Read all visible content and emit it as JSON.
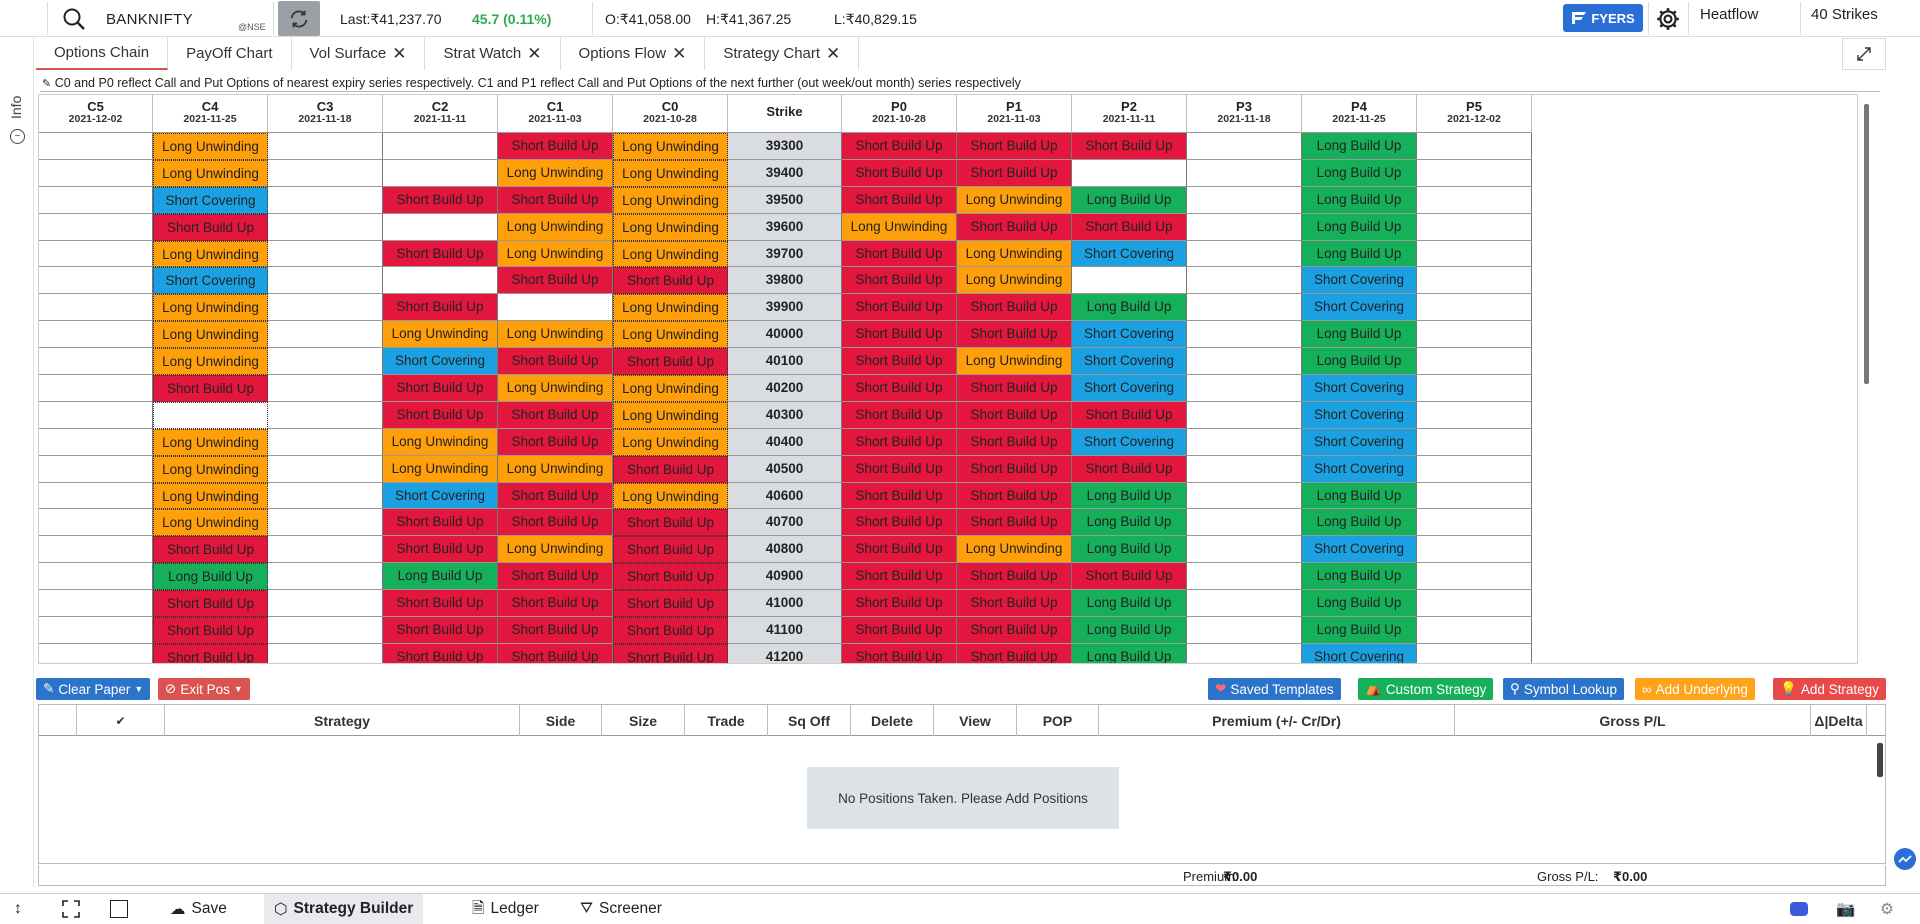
{
  "topbar": {
    "symbol": "BANKNIFTY",
    "exchange": "@NSE",
    "last": "Last:₹41,237.70",
    "change": "45.7 (0.11%)",
    "open": "O:₹41,058.00",
    "high": "H:₹41,367.25",
    "low": "L:₹40,829.15",
    "broker": "FYERS",
    "heatflow": "Heatflow",
    "strikes": "40 Strikes"
  },
  "info_label": "Info",
  "tabs": [
    {
      "label": "Options Chain",
      "closable": false,
      "active": true
    },
    {
      "label": "PayOff Chart",
      "closable": false,
      "active": false
    },
    {
      "label": "Vol Surface",
      "closable": true,
      "active": false
    },
    {
      "label": "Strat Watch",
      "closable": true,
      "active": false
    },
    {
      "label": "Options Flow",
      "closable": true,
      "active": false
    },
    {
      "label": "Strategy Chart",
      "closable": true,
      "active": false
    }
  ],
  "note": "C0 and P0 reflect Call and Put Options of nearest expiry series respectively. C1 and P1 reflect Call and Put Options of the next further (out week/out month) series respectively",
  "legend_labels": {
    "LU": "Long Unwinding",
    "SB": "Short Build Up",
    "SC": "Short Covering",
    "LB": "Long Build Up"
  },
  "columns": [
    {
      "name": "C5",
      "date": "2021-12-02"
    },
    {
      "name": "C4",
      "date": "2021-11-25"
    },
    {
      "name": "C3",
      "date": "2021-11-18"
    },
    {
      "name": "C2",
      "date": "2021-11-11"
    },
    {
      "name": "C1",
      "date": "2021-11-03"
    },
    {
      "name": "C0",
      "date": "2021-10-28"
    },
    {
      "name": "Strike",
      "date": ""
    },
    {
      "name": "P0",
      "date": "2021-10-28"
    },
    {
      "name": "P1",
      "date": "2021-11-03"
    },
    {
      "name": "P2",
      "date": "2021-11-11"
    },
    {
      "name": "P3",
      "date": "2021-11-18"
    },
    {
      "name": "P4",
      "date": "2021-11-25"
    },
    {
      "name": "P5",
      "date": "2021-12-02"
    }
  ],
  "rows": [
    {
      "strike": "39300",
      "cells": [
        "E",
        "LU",
        "E",
        "E",
        "SB",
        "LU",
        "K",
        "SB",
        "SB",
        "SB",
        "E",
        "LB",
        "E"
      ]
    },
    {
      "strike": "39400",
      "cells": [
        "E",
        "LU",
        "E",
        "E",
        "LU",
        "LU",
        "K",
        "SB",
        "SB",
        "E",
        "E",
        "LB",
        "E"
      ]
    },
    {
      "strike": "39500",
      "cells": [
        "E",
        "SC",
        "E",
        "SB",
        "SB",
        "LU",
        "K",
        "SB",
        "LU",
        "LB",
        "E",
        "LB",
        "E"
      ]
    },
    {
      "strike": "39600",
      "cells": [
        "E",
        "SB",
        "E",
        "E",
        "LU",
        "LU",
        "K",
        "LU",
        "SB",
        "SB",
        "E",
        "LB",
        "E"
      ]
    },
    {
      "strike": "39700",
      "cells": [
        "E",
        "LU",
        "E",
        "SB",
        "LU",
        "LU",
        "K",
        "SB",
        "LU",
        "SC",
        "E",
        "LB",
        "E"
      ]
    },
    {
      "strike": "39800",
      "cells": [
        "E",
        "SC",
        "E",
        "E",
        "SB",
        "SB",
        "K",
        "SB",
        "LU",
        "E",
        "E",
        "SC",
        "E"
      ]
    },
    {
      "strike": "39900",
      "cells": [
        "E",
        "LU",
        "E",
        "SB",
        "E",
        "LU",
        "K",
        "SB",
        "SB",
        "LB",
        "E",
        "SC",
        "E"
      ]
    },
    {
      "strike": "40000",
      "cells": [
        "E",
        "LU",
        "E",
        "LU",
        "LU",
        "LU",
        "K",
        "SB",
        "SB",
        "SC",
        "E",
        "LB",
        "E"
      ]
    },
    {
      "strike": "40100",
      "cells": [
        "E",
        "LU",
        "E",
        "SC",
        "SB",
        "SB",
        "K",
        "SB",
        "LU",
        "SC",
        "E",
        "LB",
        "E"
      ]
    },
    {
      "strike": "40200",
      "cells": [
        "E",
        "SB",
        "E",
        "SB",
        "LU",
        "LU",
        "K",
        "SB",
        "SB",
        "SC",
        "E",
        "SC",
        "E"
      ]
    },
    {
      "strike": "40300",
      "cells": [
        "E",
        "E",
        "E",
        "SB",
        "SB",
        "LU",
        "K",
        "SB",
        "SB",
        "SB",
        "E",
        "SC",
        "E"
      ]
    },
    {
      "strike": "40400",
      "cells": [
        "E",
        "LU",
        "E",
        "LU",
        "SB",
        "LU",
        "K",
        "SB",
        "SB",
        "SC",
        "E",
        "SC",
        "E"
      ]
    },
    {
      "strike": "40500",
      "cells": [
        "E",
        "LU",
        "E",
        "LU",
        "LU",
        "SB",
        "K",
        "SB",
        "SB",
        "SB",
        "E",
        "SC",
        "E"
      ]
    },
    {
      "strike": "40600",
      "cells": [
        "E",
        "LU",
        "E",
        "SC",
        "SB",
        "LU",
        "K",
        "SB",
        "SB",
        "LB",
        "E",
        "LB",
        "E"
      ]
    },
    {
      "strike": "40700",
      "cells": [
        "E",
        "LU",
        "E",
        "SB",
        "SB",
        "SB",
        "K",
        "SB",
        "SB",
        "LB",
        "E",
        "LB",
        "E"
      ]
    },
    {
      "strike": "40800",
      "cells": [
        "E",
        "SB",
        "E",
        "SB",
        "LU",
        "SB",
        "K",
        "SB",
        "LU",
        "LB",
        "E",
        "SC",
        "E"
      ]
    },
    {
      "strike": "40900",
      "cells": [
        "E",
        "LB",
        "E",
        "LB",
        "SB",
        "SB",
        "K",
        "SB",
        "SB",
        "SB",
        "E",
        "LB",
        "E"
      ]
    },
    {
      "strike": "41000",
      "cells": [
        "E",
        "SB",
        "E",
        "SB",
        "SB",
        "SB",
        "K",
        "SB",
        "SB",
        "LB",
        "E",
        "LB",
        "E"
      ]
    },
    {
      "strike": "41100",
      "cells": [
        "E",
        "SB",
        "E",
        "SB",
        "SB",
        "SB",
        "K",
        "SB",
        "SB",
        "LB",
        "E",
        "LB",
        "E"
      ]
    },
    {
      "strike": "41200",
      "cells": [
        "E",
        "SB",
        "E",
        "SB",
        "SB",
        "SB",
        "K",
        "SB",
        "SB",
        "LB",
        "E",
        "SC",
        "E"
      ]
    }
  ],
  "actions": {
    "clear_paper": "Clear Paper",
    "exit_pos": "Exit Pos",
    "saved_templates": "Saved Templates",
    "custom_strategy": "Custom Strategy",
    "symbol_lookup": "Symbol Lookup",
    "add_underlying": "Add Underlying",
    "add_strategy": "Add Strategy"
  },
  "positions": {
    "headers": [
      "",
      "✔",
      "Strategy",
      "Side",
      "Size",
      "Trade",
      "Sq Off",
      "Delete",
      "View",
      "POP",
      "Premium (+/- Cr/Dr)",
      "Gross P/L",
      "Δ|Delta"
    ],
    "empty_message": "No Positions Taken. Please Add Positions",
    "premium_label": "Premium:",
    "premium_value": "₹0.00",
    "gross_label": "Gross P/L:",
    "gross_value": "₹0.00"
  },
  "bottombar": {
    "save": "Save",
    "strategy_builder": "Strategy Builder",
    "ledger": "Ledger",
    "screener": "Screener"
  }
}
